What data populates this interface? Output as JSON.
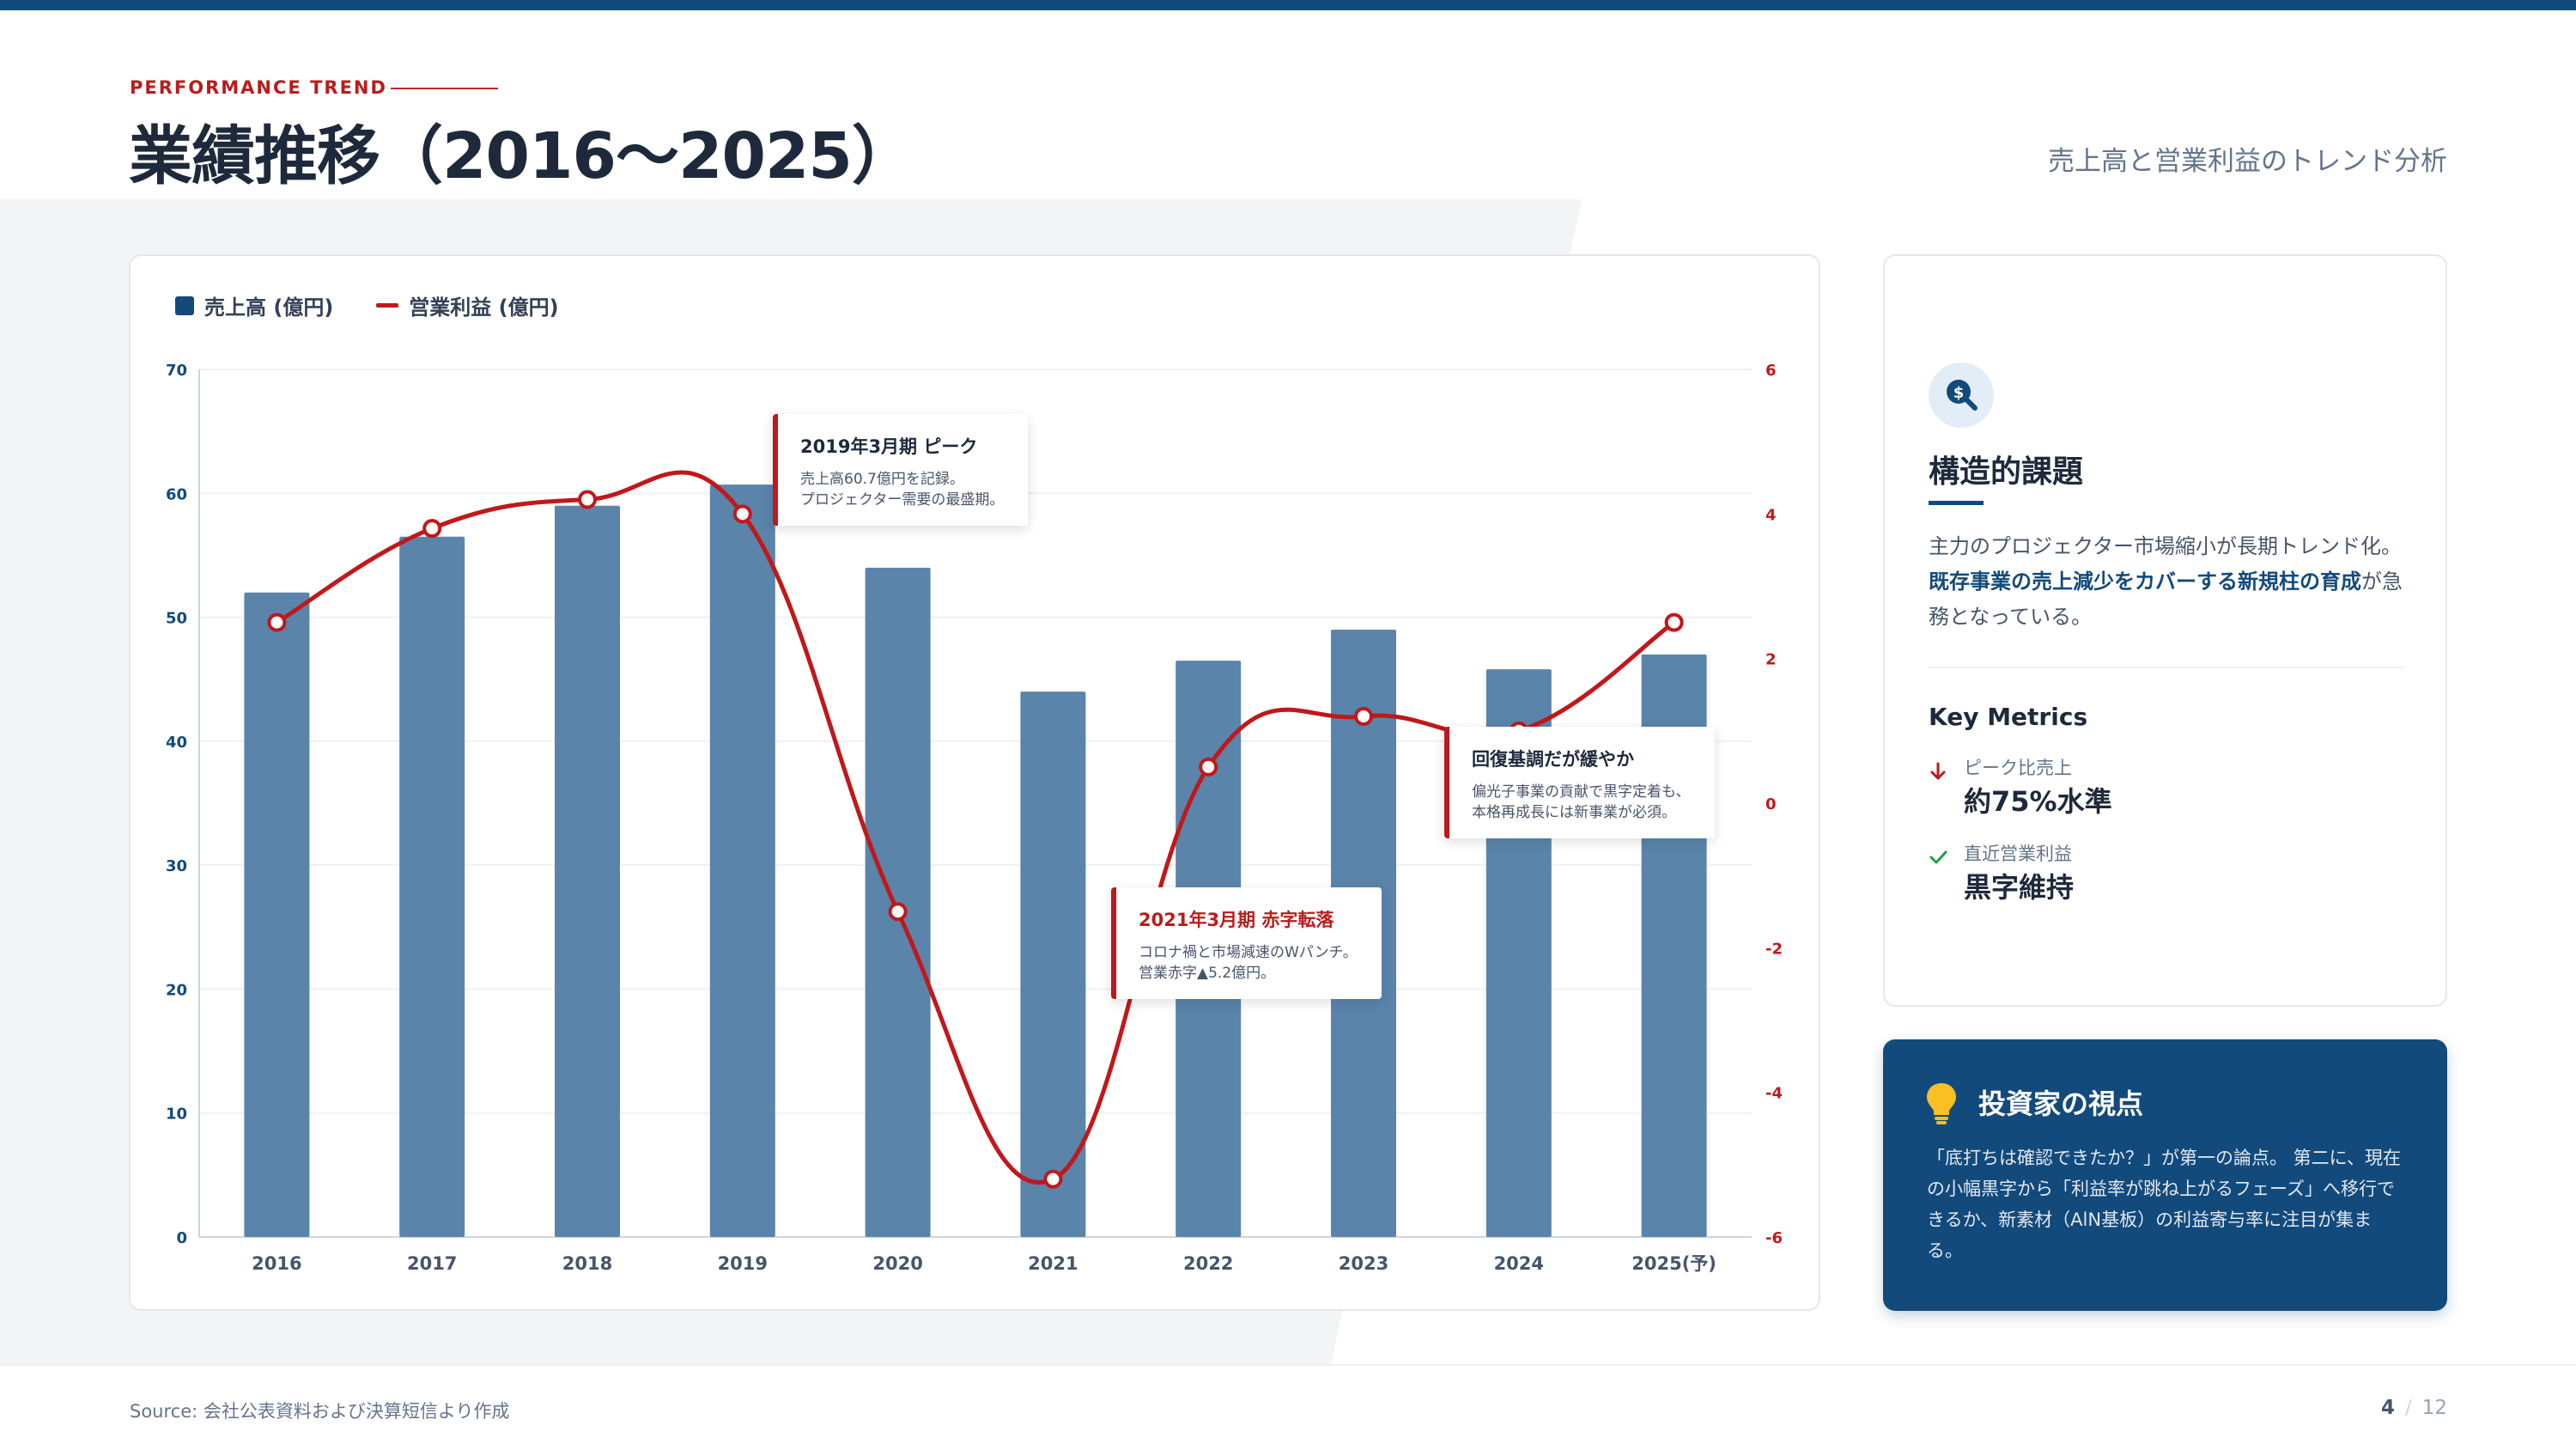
{
  "header": {
    "kicker": "PERFORMANCE TREND",
    "title": "業績推移（2016〜2025）",
    "subtitle": "売上高と営業利益のトレンド分析"
  },
  "colors": {
    "brand": "#124a7c",
    "accent_red": "#c0181b",
    "bar": "#5b84aa"
  },
  "chart_data": {
    "type": "bar",
    "categories": [
      "2016",
      "2017",
      "2018",
      "2019",
      "2020",
      "2021",
      "2022",
      "2023",
      "2024",
      "2025(予)"
    ],
    "series": [
      {
        "name": "売上高 (億円)",
        "type": "bar",
        "axis": "left",
        "values": [
          52.0,
          56.5,
          59.0,
          60.7,
          54.0,
          44.0,
          46.5,
          49.0,
          45.8,
          47.0
        ]
      },
      {
        "name": "営業利益 (億円)",
        "type": "line",
        "axis": "right",
        "values": [
          2.5,
          3.8,
          4.2,
          4.0,
          -1.5,
          -5.2,
          0.5,
          1.2,
          1.0,
          2.5
        ]
      }
    ],
    "ylim_left": [
      0,
      70
    ],
    "yticks_left": [
      0,
      10,
      20,
      30,
      40,
      50,
      60,
      70
    ],
    "ylim_right": [
      -6,
      6
    ],
    "yticks_right": [
      -6,
      -4,
      -2,
      0,
      2,
      4,
      6
    ],
    "grid": true,
    "legend_position": "top-left",
    "annotations": [
      {
        "title": "2019年3月期 ピーク",
        "lines": [
          "売上高60.7億円を記録。",
          "プロジェクター需要の最盛期。"
        ]
      },
      {
        "title": "2021年3月期 赤字転落",
        "lines": [
          "コロナ禍と市場減速のWパンチ。",
          "営業赤字▲5.2億円。"
        ]
      },
      {
        "title": "回復基調だが緩やか",
        "lines": [
          "偏光子事業の貢献で黒字定着も、",
          "本格再成長には新事業が必須。"
        ]
      }
    ]
  },
  "issue": {
    "title": "構造的課題",
    "text_before": "主力のプロジェクター市場縮小が長期トレンド化。",
    "text_highlight": "既存事業の売上減少をカバーする新規柱の育成",
    "text_after": "が急務となっている。",
    "key_metrics_title": "Key Metrics",
    "metrics": [
      {
        "label": "ピーク比売上",
        "value": "約75%水準",
        "icon": "arrow-down-icon",
        "color": "#c0181b"
      },
      {
        "label": "直近営業利益",
        "value": "黒字維持",
        "icon": "check-icon",
        "color": "#16a34a"
      }
    ]
  },
  "investor": {
    "title": "投資家の視点",
    "text": "「底打ちは確認できたか？」が第一の論点。 第二に、現在の小幅黒字から「利益率が跳ね上がるフェーズ」へ移行できるか、新素材（AlN基板）の利益寄与率に注目が集まる。"
  },
  "footer": {
    "source": "Source: 会社公表資料および決算短信より作成",
    "page_current": "4",
    "page_separator": "/",
    "page_total": "12"
  }
}
